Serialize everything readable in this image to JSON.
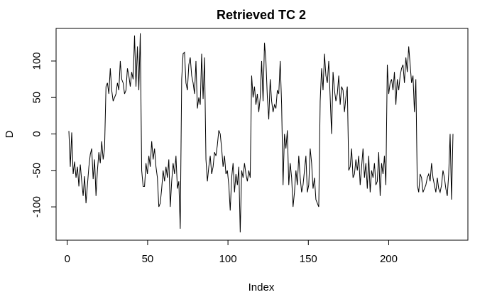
{
  "chart_data": {
    "type": "line",
    "title": "Retrieved TC   2",
    "xlabel": "Index",
    "ylabel": "D",
    "xlim": [
      1,
      240
    ],
    "ylim": [
      -135,
      135
    ],
    "x_ticks": [
      0,
      50,
      100,
      150,
      200
    ],
    "x_tick_labels": [
      "0",
      "50",
      "100",
      "150",
      "200"
    ],
    "y_ticks": [
      -100,
      -50,
      0,
      50,
      100
    ],
    "y_tick_labels": [
      "-100",
      "-50",
      "0",
      "50",
      "100"
    ],
    "grid": false,
    "line_color": "#000000",
    "series": [
      {
        "values": [
          4,
          -45,
          2,
          -55,
          -38,
          -60,
          -45,
          -72,
          -42,
          -65,
          -85,
          -58,
          -95,
          -70,
          -45,
          -28,
          -20,
          -62,
          -35,
          -85,
          -50,
          -25,
          -40,
          -10,
          -35,
          -20,
          65,
          70,
          55,
          90,
          60,
          45,
          50,
          55,
          70,
          60,
          100,
          75,
          70,
          55,
          60,
          90,
          80,
          65,
          85,
          75,
          135,
          65,
          120,
          60,
          138,
          -50,
          -72,
          -72,
          -40,
          -55,
          -30,
          -45,
          -10,
          -35,
          -20,
          -45,
          -60,
          -100,
          -95,
          -75,
          -50,
          -65,
          -45,
          -60,
          -35,
          -100,
          -65,
          -40,
          -55,
          -30,
          -75,
          -65,
          -130,
          75,
          110,
          112,
          70,
          60,
          95,
          105,
          80,
          70,
          55,
          100,
          35,
          50,
          40,
          110,
          48,
          105,
          -35,
          -65,
          -45,
          -30,
          -55,
          -45,
          -25,
          -30,
          -15,
          5,
          0,
          -20,
          -45,
          -30,
          -55,
          -50,
          -70,
          -105,
          -60,
          -40,
          -80,
          -55,
          -70,
          -45,
          -135,
          -50,
          -60,
          -40,
          -55,
          -65,
          -50,
          -60,
          80,
          50,
          65,
          40,
          55,
          30,
          50,
          100,
          45,
          125,
          100,
          50,
          20,
          75,
          45,
          30,
          40,
          35,
          60,
          55,
          100,
          40,
          -70,
          0,
          -20,
          5,
          -70,
          -40,
          -60,
          -100,
          -80,
          -50,
          -70,
          -30,
          -60,
          -80,
          -70,
          -50,
          -30,
          -80,
          -70,
          -20,
          -40,
          -75,
          -60,
          -90,
          -95,
          -100,
          45,
          90,
          60,
          110,
          80,
          70,
          100,
          50,
          0,
          85,
          60,
          45,
          55,
          80,
          40,
          65,
          60,
          30,
          50,
          65,
          -50,
          -45,
          -20,
          -60,
          -55,
          -35,
          -50,
          -30,
          -70,
          -45,
          -20,
          -60,
          -40,
          -75,
          -30,
          -80,
          -50,
          -60,
          -40,
          -70,
          -65,
          -25,
          -85,
          -40,
          -55,
          -30,
          -70,
          95,
          55,
          70,
          75,
          60,
          85,
          40,
          75,
          60,
          80,
          90,
          95,
          70,
          105,
          85,
          120,
          95,
          70,
          80,
          30,
          75,
          -70,
          -80,
          -55,
          -60,
          -80,
          -75,
          -70,
          -60,
          -55,
          -65,
          -40,
          -60,
          -70,
          -80,
          -60,
          -75,
          -80,
          -70,
          -50,
          -60,
          -75,
          -85,
          -55,
          0,
          -90,
          0
        ]
      }
    ]
  }
}
